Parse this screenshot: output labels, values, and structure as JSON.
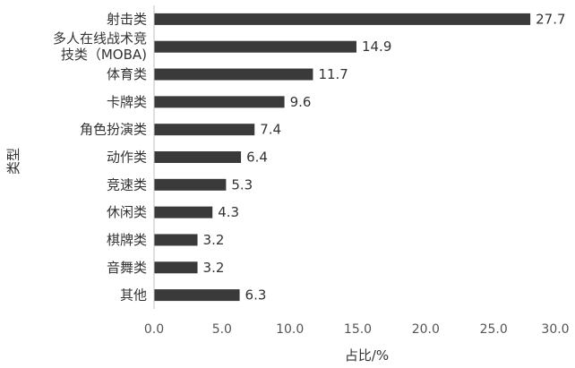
{
  "chart_data": {
    "type": "bar",
    "orientation": "horizontal",
    "categories": [
      [
        "射击类"
      ],
      [
        "多人在线战术竞",
        "技类（MOBA)"
      ],
      [
        "体育类"
      ],
      [
        "卡牌类"
      ],
      [
        "角色扮演类"
      ],
      [
        "动作类"
      ],
      [
        "竞速类"
      ],
      [
        "休闲类"
      ],
      [
        "棋牌类"
      ],
      [
        "音舞类"
      ],
      [
        "其他"
      ]
    ],
    "values": [
      27.7,
      14.9,
      11.7,
      9.6,
      7.4,
      6.4,
      5.3,
      4.3,
      3.2,
      3.2,
      6.3
    ],
    "value_labels": [
      "27.7",
      "14.9",
      "11.7",
      "9.6",
      "7.4",
      "6.4",
      "5.3",
      "4.3",
      "3.2",
      "3.2",
      "6.3"
    ],
    "xticks": [
      0,
      5,
      10,
      15,
      20,
      25,
      30
    ],
    "xtick_labels": [
      "0.0",
      "5.0",
      "10.0",
      "15.0",
      "20.0",
      "25.0",
      "30.0"
    ],
    "xlim": [
      0,
      30
    ],
    "xlabel": "占比/%",
    "ylabel": "类型",
    "grid": false,
    "bar_color": "#3a3a3a"
  }
}
